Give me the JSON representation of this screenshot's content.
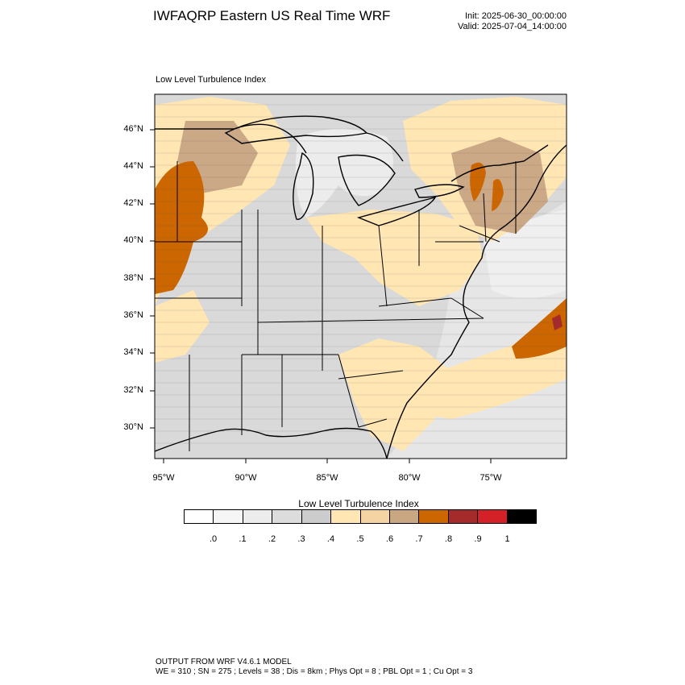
{
  "header": {
    "title": "IWFAQRP Eastern US Real Time WRF",
    "init": "Init: 2025-06-30_00:00:00",
    "valid": "Valid: 2025-07-04_14:00:00"
  },
  "map": {
    "panel_label": "Low Level Turbulence Index",
    "lat_labels": [
      "46°N",
      "44°N",
      "42°N",
      "40°N",
      "38°N",
      "36°N",
      "34°N",
      "32°N",
      "30°N"
    ],
    "lon_labels": [
      "95°W",
      "90°W",
      "85°W",
      "80°W",
      "75°W"
    ],
    "background_color": "#d9d9d9",
    "field_colors": [
      "#ffffff",
      "#f8f8f8",
      "#eeeeee",
      "#dddddd",
      "#cfcfcf",
      "#ffe6b3",
      "#f5d4a0",
      "#cba886",
      "#cc6600",
      "#a52a2a",
      "#d42027",
      "#000000"
    ]
  },
  "colorbar": {
    "title": "Low Level Turbulence Index",
    "colors": [
      "#ffffff",
      "#f6f6f6",
      "#ececec",
      "#dcdcdc",
      "#cccccc",
      "#ffe6b3",
      "#f5d3a3",
      "#c9a782",
      "#cc6600",
      "#a52a2a",
      "#d42027",
      "#000000"
    ],
    "ticks": [
      ".0",
      ".1",
      ".2",
      ".3",
      ".4",
      ".5",
      ".6",
      ".7",
      ".8",
      ".9",
      "1"
    ]
  },
  "footer": {
    "line1": "OUTPUT FROM WRF V4.6.1 MODEL",
    "line2": "WE = 310 ; SN = 275 ; Levels = 38 ; Dis = 8km ; Phys Opt = 8 ; PBL Opt = 1 ; Cu Opt = 3"
  }
}
